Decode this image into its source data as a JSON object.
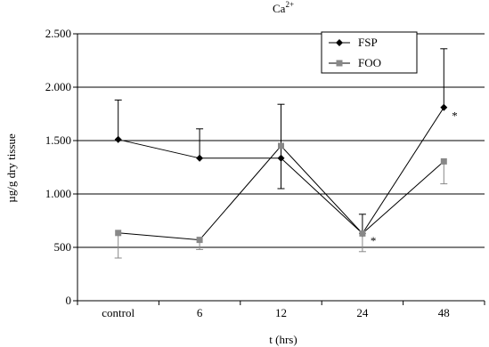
{
  "chart_data": {
    "type": "line",
    "title": "Ca",
    "title_superscript": "2+",
    "xlabel": "t (hrs)",
    "ylabel": "µg/g dry tissue",
    "categories": [
      "control",
      "6",
      "12",
      "24",
      "48"
    ],
    "ylim": [
      0,
      2500
    ],
    "yticks": [
      0,
      500,
      1000,
      1500,
      2000,
      2500
    ],
    "ytick_labels": [
      "0",
      "500",
      "1.000",
      "1.500",
      "2.000",
      "2.500"
    ],
    "grid": "horizontal",
    "legend_position": "top-right",
    "series": [
      {
        "name": "FSP",
        "marker": "diamond",
        "color": "#000000",
        "values": [
          1510,
          1335,
          1335,
          630,
          1810
        ],
        "error_upper": [
          1880,
          1610,
          1840,
          810,
          2360
        ],
        "error_lower": [
          1510,
          1335,
          1050,
          630,
          1810
        ]
      },
      {
        "name": "FOO",
        "marker": "square",
        "color": "#888888",
        "values": [
          635,
          570,
          1450,
          630,
          1305
        ],
        "error_upper": [
          635,
          570,
          1450,
          630,
          1305
        ],
        "error_lower": [
          400,
          480,
          1450,
          460,
          1095
        ]
      }
    ],
    "annotations": [
      {
        "text": "*",
        "category": "24",
        "value": 600
      },
      {
        "text": "*",
        "category": "48",
        "value": 1770
      }
    ]
  }
}
